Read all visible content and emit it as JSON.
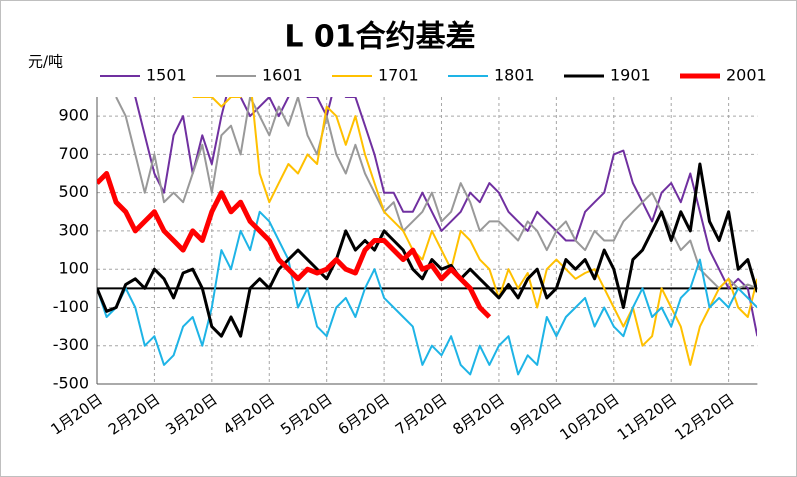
{
  "chart_data": {
    "type": "line",
    "title": "L 01合约基差",
    "y_label": "元/吨",
    "categories": [
      "1月20日",
      null,
      null,
      null,
      null,
      null,
      "2月20日",
      null,
      null,
      null,
      null,
      null,
      "3月20日",
      null,
      null,
      null,
      null,
      null,
      "4月20日",
      null,
      null,
      null,
      null,
      null,
      "5月20日",
      null,
      null,
      null,
      null,
      null,
      "6月20日",
      null,
      null,
      null,
      null,
      null,
      "7月20日",
      null,
      null,
      null,
      null,
      null,
      "8月20日",
      null,
      null,
      null,
      null,
      null,
      "9月20日",
      null,
      null,
      null,
      null,
      null,
      "10月20日",
      null,
      null,
      null,
      null,
      null,
      "11月20日",
      null,
      null,
      null,
      null,
      null,
      "12月20日",
      null,
      null,
      null
    ],
    "ylim": [
      -500,
      1000
    ],
    "yticks": [
      -500,
      -300,
      -100,
      100,
      300,
      500,
      700,
      900
    ],
    "grid": true,
    "series": [
      {
        "name": "1501",
        "color": "#7030a0",
        "width": 2,
        "values": [
          null,
          null,
          null,
          1100,
          1000,
          800,
          600,
          500,
          800,
          900,
          600,
          800,
          650,
          900,
          1100,
          1000,
          900,
          950,
          1000,
          900,
          1000,
          1100,
          1000,
          1000,
          900,
          1100,
          1000,
          1000,
          850,
          700,
          500,
          500,
          400,
          400,
          500,
          400,
          300,
          350,
          400,
          500,
          450,
          550,
          500,
          400,
          350,
          300,
          400,
          350,
          300,
          250,
          250,
          400,
          450,
          500,
          700,
          720,
          550,
          450,
          350,
          500,
          550,
          450,
          600,
          400,
          200,
          100,
          0,
          50,
          0,
          -250
        ]
      },
      {
        "name": "1601",
        "color": "#999999",
        "width": 2,
        "values": [
          null,
          null,
          1000,
          900,
          700,
          500,
          700,
          450,
          500,
          450,
          600,
          750,
          500,
          800,
          850,
          700,
          1000,
          900,
          800,
          950,
          850,
          1000,
          800,
          700,
          900,
          700,
          600,
          750,
          600,
          500,
          400,
          450,
          300,
          350,
          400,
          500,
          350,
          400,
          550,
          450,
          300,
          350,
          350,
          300,
          250,
          350,
          300,
          200,
          300,
          350,
          250,
          200,
          300,
          250,
          250,
          350,
          400,
          450,
          500,
          400,
          300,
          200,
          250,
          100,
          50,
          0,
          50,
          0,
          20,
          0
        ]
      },
      {
        "name": "1701",
        "color": "#ffc000",
        "width": 2,
        "values": [
          null,
          null,
          null,
          null,
          null,
          null,
          null,
          null,
          null,
          null,
          1000,
          1000,
          1000,
          950,
          1000,
          1000,
          1100,
          600,
          450,
          550,
          650,
          600,
          700,
          650,
          950,
          900,
          750,
          900,
          700,
          550,
          400,
          350,
          300,
          200,
          150,
          300,
          200,
          100,
          300,
          250,
          150,
          100,
          -50,
          100,
          0,
          80,
          -100,
          100,
          150,
          100,
          50,
          80,
          100,
          0,
          -100,
          -200,
          -100,
          -300,
          -250,
          0,
          -100,
          -200,
          -400,
          -200,
          -100,
          0,
          50,
          -100,
          -150,
          50
        ]
      },
      {
        "name": "1801",
        "color": "#1eb4e6",
        "width": 2,
        "values": [
          0,
          -150,
          -100,
          0,
          -100,
          -300,
          -250,
          -400,
          -350,
          -200,
          -150,
          -300,
          -100,
          200,
          100,
          300,
          200,
          400,
          350,
          250,
          150,
          -100,
          0,
          -200,
          -250,
          -100,
          -50,
          -150,
          0,
          100,
          -50,
          -100,
          -150,
          -200,
          -400,
          -300,
          -350,
          -250,
          -400,
          -450,
          -300,
          -400,
          -300,
          -250,
          -450,
          -350,
          -400,
          -150,
          -250,
          -150,
          -100,
          -50,
          -200,
          -100,
          -200,
          -250,
          -100,
          0,
          -150,
          -100,
          -200,
          -50,
          0,
          150,
          -100,
          -50,
          -100,
          0,
          -50,
          -100
        ]
      },
      {
        "name": "1901",
        "color": "#000000",
        "width": 3,
        "values": [
          0,
          -120,
          -100,
          20,
          50,
          0,
          100,
          50,
          -50,
          80,
          100,
          0,
          -200,
          -250,
          -150,
          -250,
          0,
          50,
          0,
          100,
          150,
          200,
          150,
          100,
          50,
          150,
          300,
          200,
          250,
          200,
          300,
          250,
          200,
          100,
          50,
          150,
          100,
          120,
          50,
          100,
          50,
          0,
          -50,
          20,
          -50,
          50,
          100,
          -50,
          0,
          150,
          100,
          150,
          50,
          200,
          100,
          -100,
          150,
          200,
          300,
          400,
          250,
          400,
          300,
          650,
          350,
          250,
          400,
          100,
          150,
          -20
        ]
      },
      {
        "name": "2001",
        "color": "#ff0000",
        "width": 5,
        "values": [
          550,
          600,
          450,
          400,
          300,
          350,
          400,
          300,
          250,
          200,
          300,
          250,
          400,
          500,
          400,
          450,
          350,
          300,
          250,
          150,
          100,
          50,
          100,
          80,
          100,
          150,
          100,
          80,
          200,
          250,
          250,
          200,
          150,
          200,
          100,
          120,
          50,
          100,
          50,
          0,
          -100,
          -150,
          null,
          null,
          null,
          null,
          null,
          null,
          null,
          null,
          null,
          null,
          null,
          null,
          null,
          null,
          null,
          null,
          null,
          null,
          null,
          null,
          null,
          null,
          null,
          null,
          null,
          null,
          null,
          null
        ]
      }
    ]
  }
}
